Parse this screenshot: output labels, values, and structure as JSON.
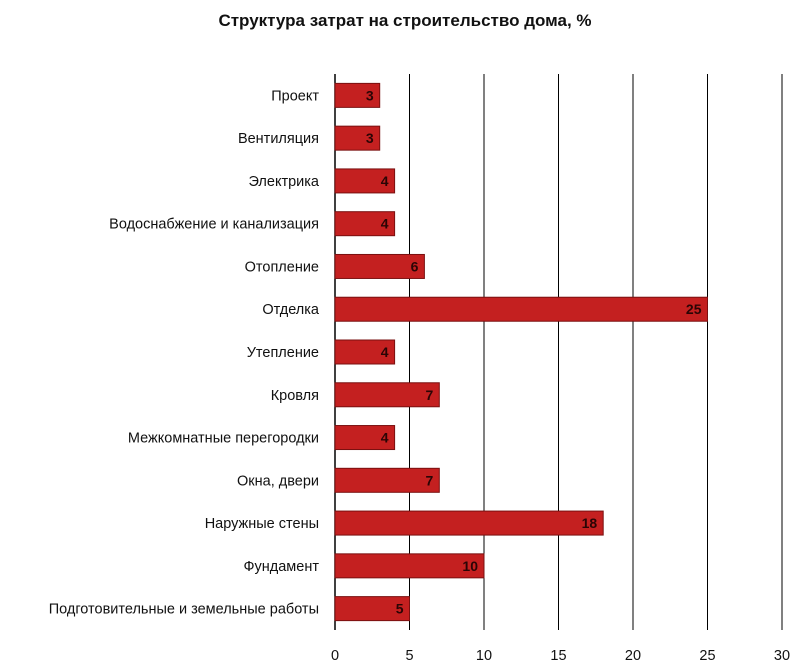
{
  "chart_data": {
    "type": "bar",
    "orientation": "horizontal",
    "title": "Структура затрат на строительство дома, %",
    "xlabel": "",
    "ylabel": "",
    "xlim": [
      0,
      30
    ],
    "x_ticks": [
      0,
      5,
      10,
      15,
      20,
      25,
      30
    ],
    "grid": true,
    "legend": "none",
    "bar_color": "#c42020",
    "categories": [
      "Проект",
      "Вентиляция",
      "Электрика",
      "Водоснабжение и канализация",
      "Отопление",
      "Отделка",
      "Утепление",
      "Кровля",
      "Межкомнатные перегородки",
      "Окна, двери",
      "Наружные стены",
      "Фундамент",
      "Подготовительные и земельные работы"
    ],
    "values": [
      3,
      3,
      4,
      4,
      6,
      25,
      4,
      7,
      4,
      7,
      18,
      10,
      5
    ]
  }
}
